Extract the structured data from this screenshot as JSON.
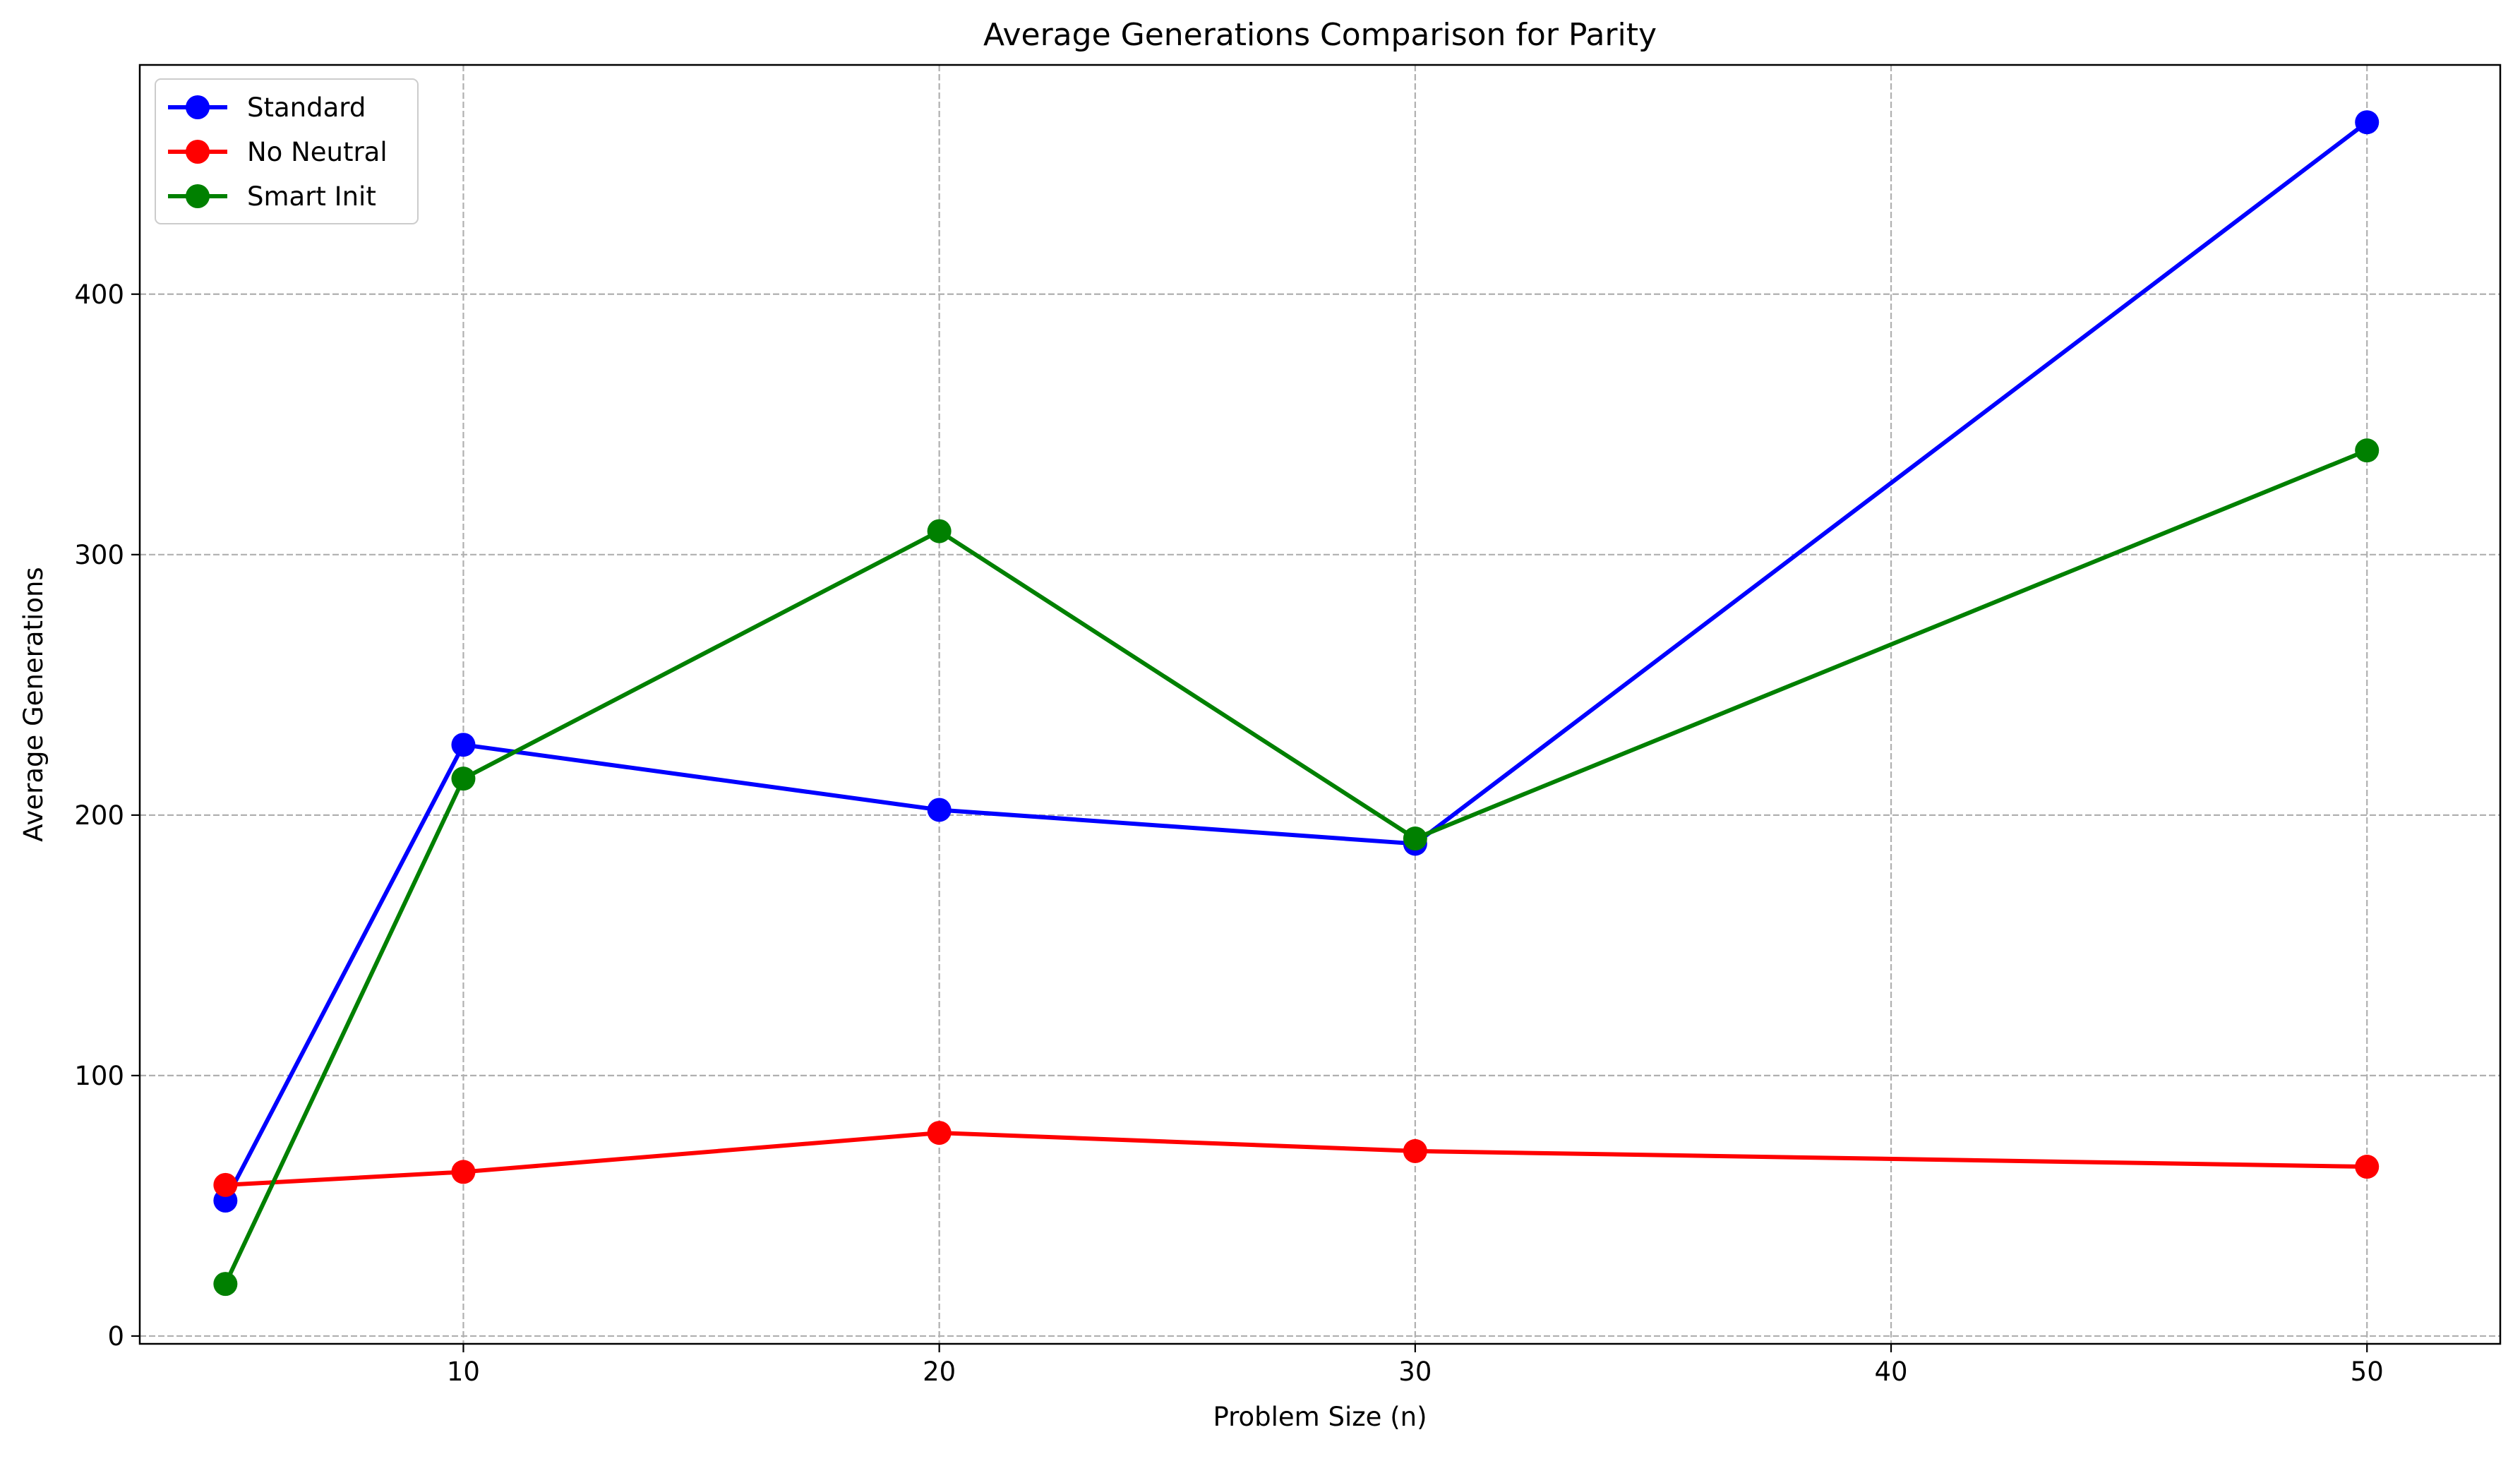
{
  "chart_data": {
    "type": "line",
    "title": "Average Generations Comparison for Parity",
    "xlabel": "Problem Size (n)",
    "ylabel": "Average Generations",
    "x": [
      5,
      10,
      20,
      30,
      50
    ],
    "xlim": [
      3.2,
      52.8
    ],
    "ylim": [
      -3,
      488
    ],
    "xticks": [
      10,
      20,
      30,
      40,
      50
    ],
    "yticks": [
      0,
      100,
      200,
      300,
      400
    ],
    "grid": true,
    "legend_position": "top-left",
    "series": [
      {
        "name": "Standard",
        "color": "#0000ff",
        "values": [
          52,
          227,
          202,
          189,
          466
        ]
      },
      {
        "name": "No Neutral",
        "color": "#ff0000",
        "values": [
          58,
          63,
          78,
          71,
          65
        ]
      },
      {
        "name": "Smart Init",
        "color": "#008000",
        "values": [
          20,
          214,
          309,
          191,
          340
        ]
      }
    ]
  }
}
